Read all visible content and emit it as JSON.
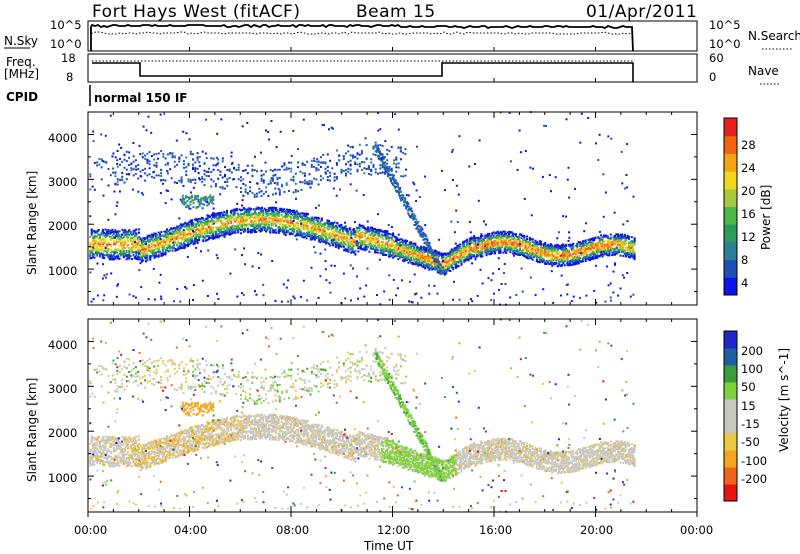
{
  "header": {
    "station": "Fort Hays West (fitACF)",
    "beam": "Beam 15",
    "date": "01/Apr/2011"
  },
  "strip_nsky": {
    "left_label": "N.Sky",
    "right_label": "N.Search",
    "left_ticks": [
      "10^5",
      "10^0"
    ],
    "right_ticks": [
      "10^5",
      "10^0"
    ]
  },
  "strip_freq": {
    "left_label_1": "Freq.",
    "left_label_2": "[MHz]",
    "right_label": "Nave",
    "left_ticks": [
      "18",
      "8"
    ],
    "right_ticks": [
      "60",
      "0"
    ]
  },
  "cpid": {
    "label": "CPID",
    "value": "normal 150 IF"
  },
  "colors": {
    "power": [
      "#0a14e6",
      "#1e4fb4",
      "#2d7e96",
      "#2c9a5a",
      "#4db848",
      "#a5c93a",
      "#f0d71e",
      "#f5a514",
      "#f06414",
      "#e62020"
    ],
    "velocity": [
      "#e61414",
      "#f0641e",
      "#f5a51e",
      "#ebc846",
      "#c8c8c0",
      "#c8c8c0",
      "#7cd23c",
      "#3c9b3c",
      "#1e5fa0",
      "#1e28c8"
    ]
  },
  "chart_data": [
    {
      "type": "heatmap",
      "title": "",
      "xlabel": "",
      "ylabel": "Slant Range [km]",
      "xlim": [
        "00:00",
        "24:00"
      ],
      "ylim": [
        200,
        4500
      ],
      "yticks": [
        "1000",
        "2000",
        "3000",
        "4000"
      ],
      "colorbar": {
        "label": "Power [dB]",
        "ticks": [
          "4",
          "8",
          "12",
          "16",
          "20",
          "24",
          "28"
        ],
        "range": [
          0,
          30
        ]
      },
      "echo_bands_km": [
        {
          "time_range_hr": [
            0.0,
            21.5
          ],
          "range_km": [
            1200,
            1900
          ],
          "description": "main scatter band"
        },
        {
          "time_range_hr": [
            0.0,
            12.5
          ],
          "range_km": [
            2700,
            3600
          ],
          "description": "upper scatter band"
        }
      ]
    },
    {
      "type": "heatmap",
      "title": "",
      "xlabel": "Time UT",
      "ylabel": "Slant Range [km]",
      "xlim": [
        "00:00",
        "24:00"
      ],
      "ylim": [
        200,
        4500
      ],
      "xticks": [
        "00:00",
        "04:00",
        "08:00",
        "12:00",
        "16:00",
        "20:00",
        "00:00"
      ],
      "yticks": [
        "1000",
        "2000",
        "3000",
        "4000"
      ],
      "colorbar": {
        "label": "Velocity [m s^-1]",
        "ticks": [
          "200",
          "100",
          "50",
          "15",
          "-15",
          "-50",
          "-100",
          "-200"
        ]
      }
    }
  ]
}
